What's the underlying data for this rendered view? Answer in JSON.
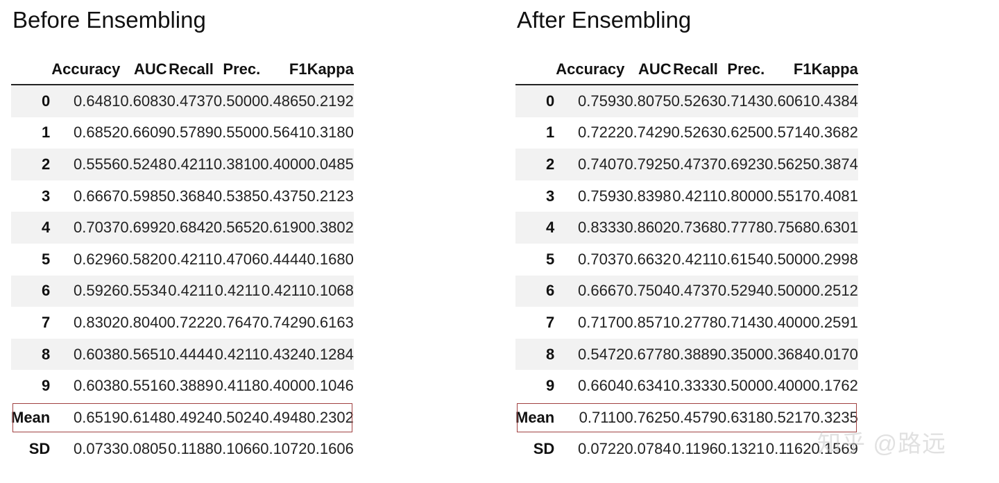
{
  "columns": [
    "",
    "Accuracy",
    "AUC",
    "Recall",
    "Prec.",
    "F1",
    "Kappa"
  ],
  "panels": [
    {
      "title": "Before Ensembling",
      "rows": [
        {
          "label": "0",
          "values": [
            "0.6481",
            "0.6083",
            "0.4737",
            "0.5000",
            "0.4865",
            "0.2192"
          ]
        },
        {
          "label": "1",
          "values": [
            "0.6852",
            "0.6609",
            "0.5789",
            "0.5500",
            "0.5641",
            "0.3180"
          ]
        },
        {
          "label": "2",
          "values": [
            "0.5556",
            "0.5248",
            "0.4211",
            "0.3810",
            "0.4000",
            "0.0485"
          ]
        },
        {
          "label": "3",
          "values": [
            "0.6667",
            "0.5985",
            "0.3684",
            "0.5385",
            "0.4375",
            "0.2123"
          ]
        },
        {
          "label": "4",
          "values": [
            "0.7037",
            "0.6992",
            "0.6842",
            "0.5652",
            "0.6190",
            "0.3802"
          ]
        },
        {
          "label": "5",
          "values": [
            "0.6296",
            "0.5820",
            "0.4211",
            "0.4706",
            "0.4444",
            "0.1680"
          ]
        },
        {
          "label": "6",
          "values": [
            "0.5926",
            "0.5534",
            "0.4211",
            "0.4211",
            "0.4211",
            "0.1068"
          ]
        },
        {
          "label": "7",
          "values": [
            "0.8302",
            "0.8040",
            "0.7222",
            "0.7647",
            "0.7429",
            "0.6163"
          ]
        },
        {
          "label": "8",
          "values": [
            "0.6038",
            "0.5651",
            "0.4444",
            "0.4211",
            "0.4324",
            "0.1284"
          ]
        },
        {
          "label": "9",
          "values": [
            "0.6038",
            "0.5516",
            "0.3889",
            "0.4118",
            "0.4000",
            "0.1046"
          ]
        },
        {
          "label": "Mean",
          "values": [
            "0.6519",
            "0.6148",
            "0.4924",
            "0.5024",
            "0.4948",
            "0.2302"
          ]
        },
        {
          "label": "SD",
          "values": [
            "0.0733",
            "0.0805",
            "0.1188",
            "0.1066",
            "0.1072",
            "0.1606"
          ]
        }
      ]
    },
    {
      "title": "After Ensembling",
      "rows": [
        {
          "label": "0",
          "values": [
            "0.7593",
            "0.8075",
            "0.5263",
            "0.7143",
            "0.6061",
            "0.4384"
          ]
        },
        {
          "label": "1",
          "values": [
            "0.7222",
            "0.7429",
            "0.5263",
            "0.6250",
            "0.5714",
            "0.3682"
          ]
        },
        {
          "label": "2",
          "values": [
            "0.7407",
            "0.7925",
            "0.4737",
            "0.6923",
            "0.5625",
            "0.3874"
          ]
        },
        {
          "label": "3",
          "values": [
            "0.7593",
            "0.8398",
            "0.4211",
            "0.8000",
            "0.5517",
            "0.4081"
          ]
        },
        {
          "label": "4",
          "values": [
            "0.8333",
            "0.8602",
            "0.7368",
            "0.7778",
            "0.7568",
            "0.6301"
          ]
        },
        {
          "label": "5",
          "values": [
            "0.7037",
            "0.6632",
            "0.4211",
            "0.6154",
            "0.5000",
            "0.2998"
          ]
        },
        {
          "label": "6",
          "values": [
            "0.6667",
            "0.7504",
            "0.4737",
            "0.5294",
            "0.5000",
            "0.2512"
          ]
        },
        {
          "label": "7",
          "values": [
            "0.7170",
            "0.8571",
            "0.2778",
            "0.7143",
            "0.4000",
            "0.2591"
          ]
        },
        {
          "label": "8",
          "values": [
            "0.5472",
            "0.6778",
            "0.3889",
            "0.3500",
            "0.3684",
            "0.0170"
          ]
        },
        {
          "label": "9",
          "values": [
            "0.6604",
            "0.6341",
            "0.3333",
            "0.5000",
            "0.4000",
            "0.1762"
          ]
        },
        {
          "label": "Mean",
          "values": [
            "0.7110",
            "0.7625",
            "0.4579",
            "0.6318",
            "0.5217",
            "0.3235"
          ]
        },
        {
          "label": "SD",
          "values": [
            "0.0722",
            "0.0784",
            "0.1196",
            "0.1321",
            "0.1162",
            "0.1569"
          ]
        }
      ]
    }
  ],
  "watermark": "知乎 @路远",
  "highlight_color": "#a04040"
}
